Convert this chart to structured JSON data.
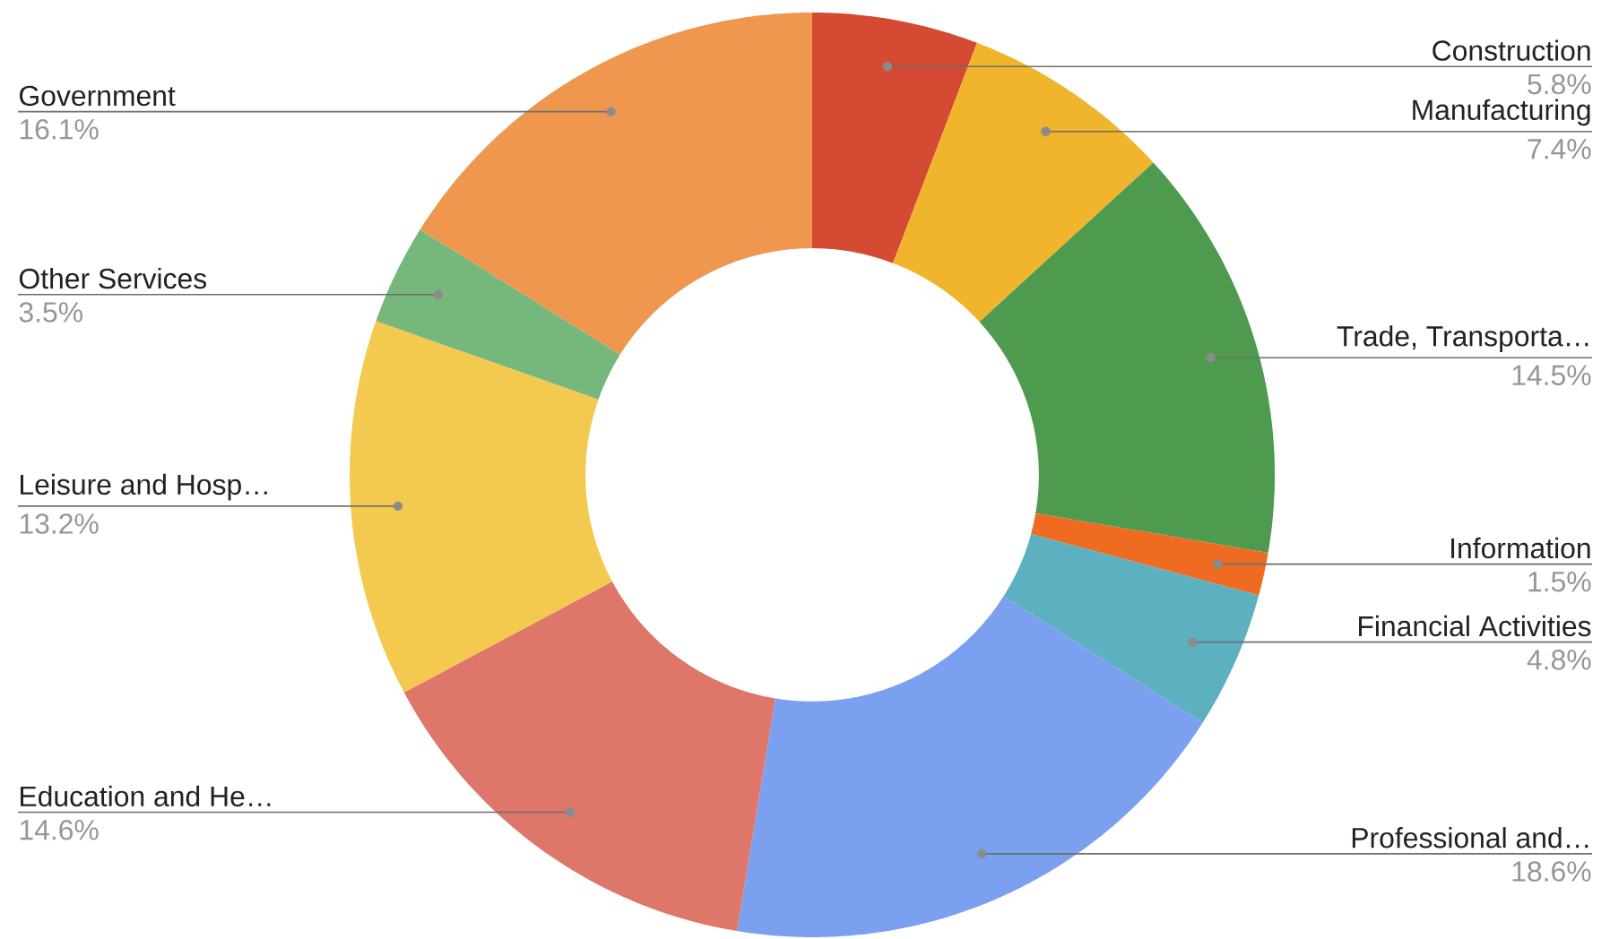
{
  "chart_data": {
    "type": "donut",
    "categories": [
      "Construction",
      "Manufacturing",
      "Trade, Transporta…",
      "Information",
      "Financial Activities",
      "Professional and…",
      "Education and He…",
      "Leisure and Hosp…",
      "Other Services",
      "Government"
    ],
    "values": [
      5.8,
      7.4,
      14.5,
      1.5,
      4.8,
      18.6,
      14.6,
      13.2,
      3.5,
      16.1
    ],
    "value_labels": [
      "5.8%",
      "7.4%",
      "14.5%",
      "1.5%",
      "4.8%",
      "18.6%",
      "14.6%",
      "13.2%",
      "3.5%",
      "16.1%"
    ],
    "colors": [
      "#d44a33",
      "#f0b52d",
      "#4e9a4e",
      "#ef6b22",
      "#5cb0c0",
      "#7ba0ef",
      "#de776a",
      "#f4c94f",
      "#76b77c",
      "#ef974f"
    ]
  }
}
